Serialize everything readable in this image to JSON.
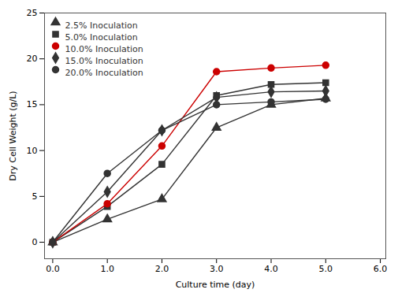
{
  "chart_data": {
    "type": "line",
    "xlabel": "Culture time (day)",
    "ylabel": "Dry Cell Weight (g/L)",
    "x": [
      0,
      1,
      2,
      3,
      4,
      5
    ],
    "series": [
      {
        "name": "2.5% Inoculation",
        "color": "#333333",
        "marker": "triangle",
        "values": [
          0,
          2.5,
          4.7,
          12.5,
          15.0,
          15.7
        ]
      },
      {
        "name": "5.0% Inoculation",
        "color": "#333333",
        "marker": "square",
        "values": [
          0,
          3.9,
          8.5,
          16.0,
          17.2,
          17.4
        ]
      },
      {
        "name": "10.0% Inoculation",
        "color": "#cc0000",
        "marker": "circle",
        "values": [
          0,
          4.2,
          10.5,
          18.6,
          19.0,
          19.3
        ]
      },
      {
        "name": "15.0% Inoculation",
        "color": "#333333",
        "marker": "diamond",
        "values": [
          0,
          5.5,
          12.2,
          15.8,
          16.4,
          16.5
        ]
      },
      {
        "name": "20.0% Inoculation",
        "color": "#333333",
        "marker": "circle",
        "values": [
          0,
          7.5,
          12.2,
          15.0,
          15.3,
          15.6
        ]
      }
    ],
    "xlim": [
      -0.15,
      6.1
    ],
    "ylim": [
      -1.8,
      25
    ],
    "xticks": [
      0,
      1,
      2,
      3,
      4,
      5,
      6
    ],
    "yticks": [
      0,
      5,
      10,
      15,
      20,
      25
    ],
    "legend": "upper left",
    "grid": false
  }
}
